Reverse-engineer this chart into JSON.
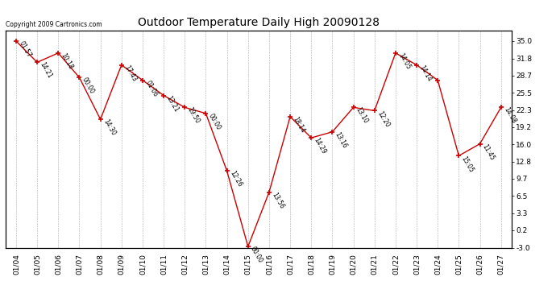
{
  "title": "Outdoor Temperature Daily High 20090128",
  "copyright": "Copyright 2009 Cartronics.com",
  "x_labels": [
    "01/04",
    "01/05",
    "01/06",
    "01/07",
    "01/08",
    "01/09",
    "01/10",
    "01/11",
    "01/12",
    "01/13",
    "01/14",
    "01/15",
    "01/16",
    "01/17",
    "01/18",
    "01/19",
    "01/20",
    "01/21",
    "01/22",
    "01/23",
    "01/24",
    "01/25",
    "01/26",
    "01/27"
  ],
  "y_values": [
    35.0,
    31.1,
    32.8,
    28.3,
    20.6,
    30.6,
    27.8,
    25.0,
    22.8,
    21.7,
    11.1,
    -2.8,
    7.2,
    21.1,
    17.2,
    18.3,
    22.8,
    22.2,
    32.8,
    30.6,
    27.8,
    13.9,
    16.1,
    22.8
  ],
  "point_labels_clean": [
    "01:57",
    "14:21",
    "10:18",
    "00:00",
    "14:30",
    "17:43",
    "01:06",
    "13:21",
    "19:50",
    "00:00",
    "12:26",
    "00:00",
    "13:56",
    "18:14",
    "14:29",
    "13:16",
    "13:10",
    "12:20",
    "14:05",
    "14:14",
    "",
    "15:05",
    "11:45",
    "14:08"
  ],
  "y_right_ticks": [
    35.0,
    31.8,
    28.7,
    25.5,
    22.3,
    19.2,
    16.0,
    12.8,
    9.7,
    6.5,
    3.3,
    0.2,
    -3.0
  ],
  "ylim_min": -3.0,
  "ylim_max": 37.0,
  "line_color": "#cc0000",
  "marker_color": "#cc0000",
  "bg_color": "#ffffff",
  "grid_color": "#aaaaaa"
}
